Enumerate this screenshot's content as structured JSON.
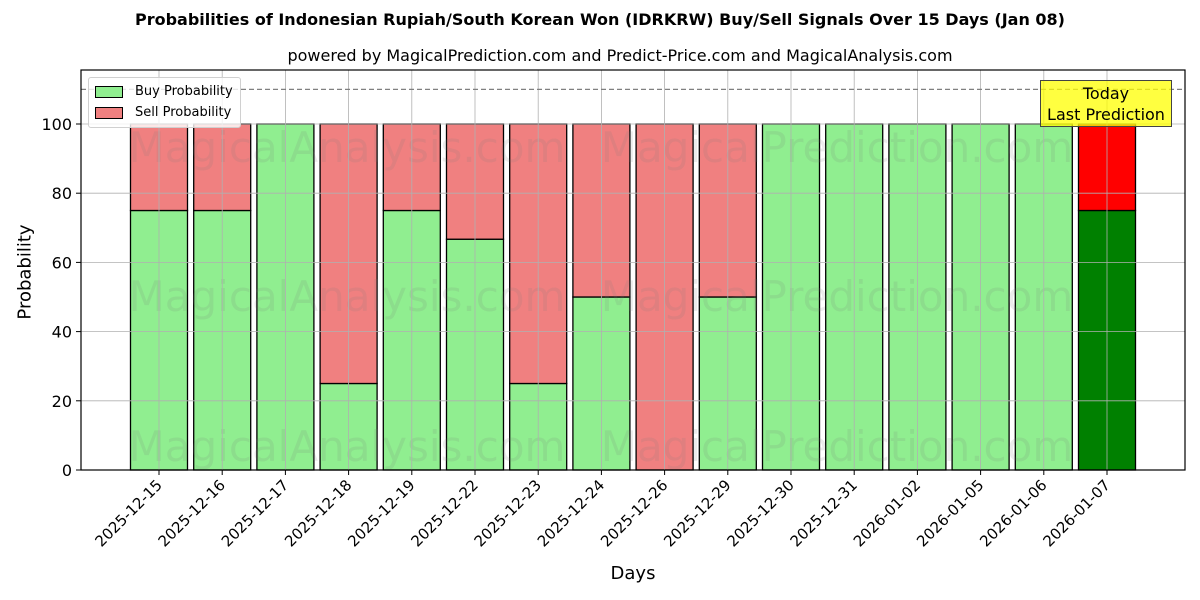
{
  "header": {
    "title": "Probabilities of Indonesian Rupiah/South Korean Won (IDRKRW) Buy/Sell Signals Over 15 Days (Jan 08)",
    "subtitle": "powered by MagicalPrediction.com and Predict-Price.com and MagicalAnalysis.com"
  },
  "axes": {
    "xlabel": "Days",
    "ylabel": "Probability",
    "yticks": [
      "0",
      "20",
      "40",
      "60",
      "80",
      "100"
    ]
  },
  "legend": {
    "buy_label": "Buy Probability",
    "sell_label": "Sell Probability"
  },
  "annotation": {
    "line1": "Today",
    "line2": "Last Prediction"
  },
  "watermarks": [
    "MagicalAnalysis.com",
    "MagicalPrediction.com"
  ],
  "colors": {
    "buy": "#90ee90",
    "sell": "#f08080",
    "buy_today": "#008000",
    "sell_today": "#ff0000",
    "annotation_bg": "#ffff00"
  },
  "chart_data": {
    "type": "bar",
    "stacked": true,
    "title": "Probabilities of Indonesian Rupiah/South Korean Won (IDRKRW) Buy/Sell Signals Over 15 Days (Jan 08)",
    "subtitle": "powered by MagicalPrediction.com and Predict-Price.com and MagicalAnalysis.com",
    "xlabel": "Days",
    "ylabel": "Probability",
    "ylim": [
      0,
      115
    ],
    "yticks": [
      0,
      20,
      40,
      60,
      80,
      100
    ],
    "grid": true,
    "legend_position": "upper left",
    "reference_line": {
      "y": 110,
      "style": "dashed",
      "color": "#808080"
    },
    "categories": [
      "2025-12-15",
      "2025-12-16",
      "2025-12-17",
      "2025-12-18",
      "2025-12-19",
      "2025-12-22",
      "2025-12-23",
      "2025-12-24",
      "2025-12-26",
      "2025-12-29",
      "2025-12-30",
      "2025-12-31",
      "2026-01-02",
      "2026-01-05",
      "2026-01-06",
      "2026-01-07"
    ],
    "series": [
      {
        "name": "Buy Probability",
        "values": [
          75,
          75,
          100,
          25,
          75,
          66.7,
          25,
          50,
          0,
          50,
          100,
          100,
          100,
          100,
          100,
          75
        ]
      },
      {
        "name": "Sell Probability",
        "values": [
          25,
          25,
          0,
          75,
          25,
          33.3,
          75,
          50,
          100,
          50,
          0,
          0,
          0,
          0,
          0,
          25
        ]
      }
    ],
    "annotations": [
      {
        "text": "Today\nLast Prediction",
        "x": "2026-01-07"
      }
    ],
    "highlight_last_bar": true
  }
}
